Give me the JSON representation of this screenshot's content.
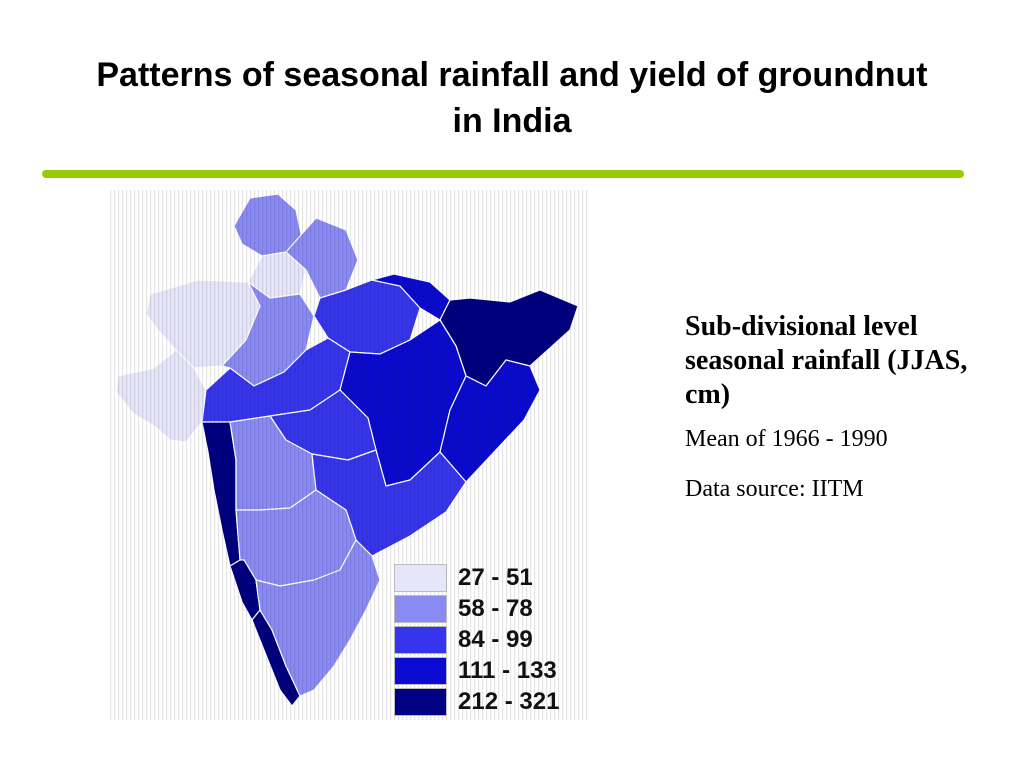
{
  "slide": {
    "title": "Patterns of seasonal rainfall and yield of groundnut in India",
    "accent_color": "#99cc00"
  },
  "info": {
    "heading": "Sub-divisional level seasonal rainfall (JJAS, cm)",
    "mean_line": "Mean of 1966 - 1990",
    "source_line": "Data source: IITM"
  },
  "legend": {
    "items": [
      {
        "label": "27 - 51",
        "color": "#e6e6fa"
      },
      {
        "label": "58 - 78",
        "color": "#8a8af5"
      },
      {
        "label": "84 - 99",
        "color": "#3535ee"
      },
      {
        "label": "111 - 133",
        "color": "#0a0ad2"
      },
      {
        "label": "212 - 321",
        "color": "#000082"
      }
    ]
  }
}
